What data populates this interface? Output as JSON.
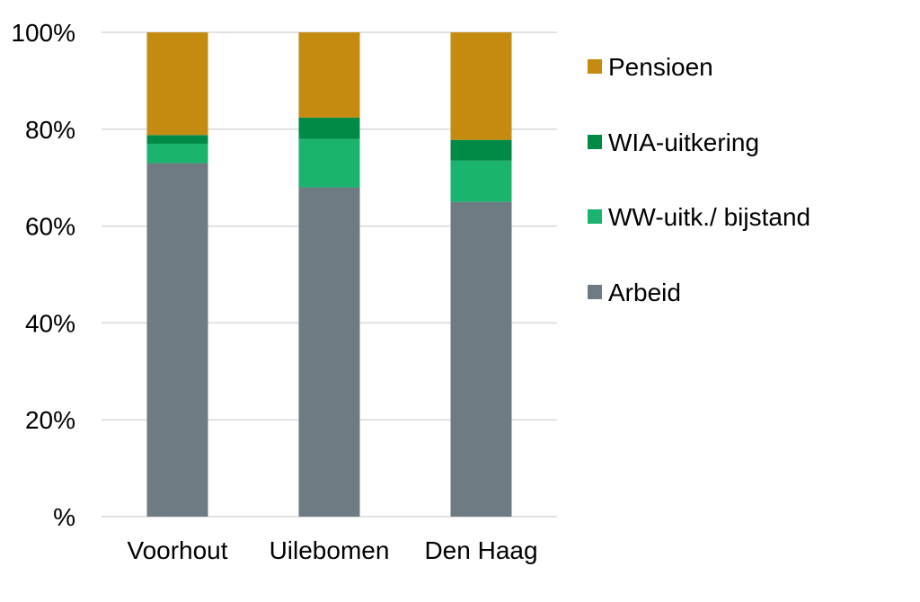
{
  "chart_data": {
    "type": "bar",
    "stacked": true,
    "categories": [
      "Voorhout",
      "Uilebomen",
      "Den Haag"
    ],
    "series": [
      {
        "name": "Arbeid",
        "color": "#6e7b82",
        "values": [
          73,
          68,
          65
        ]
      },
      {
        "name": "WW-uitk./ bijstand",
        "color": "#1ab46e",
        "values": [
          4,
          10,
          8.5
        ]
      },
      {
        "name": "WIA-uitkering",
        "color": "#008a46",
        "values": [
          1.8,
          4.4,
          4.3
        ]
      },
      {
        "name": "Pensioen",
        "color": "#c58b10",
        "values": [
          21.2,
          17.6,
          22.2
        ]
      }
    ],
    "yticks": [
      "%",
      "20%",
      "40%",
      "60%",
      "80%",
      "100%"
    ],
    "ylim": [
      0,
      100
    ],
    "grid": true,
    "legend_position": "right",
    "legend_order": [
      "Pensioen",
      "WIA-uitkering",
      "WW-uitk./ bijstand",
      "Arbeid"
    ]
  }
}
